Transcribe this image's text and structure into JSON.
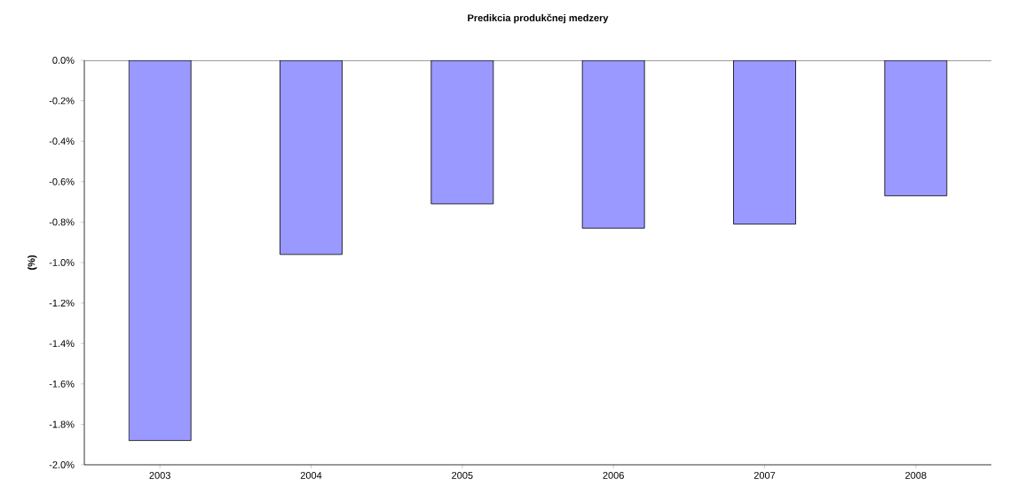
{
  "chart_data": {
    "type": "bar",
    "title": "Predikcia produkčnej medzery",
    "ylabel": "(%)",
    "categories": [
      "2003",
      "2004",
      "2005",
      "2006",
      "2007",
      "2008"
    ],
    "values": [
      -1.88,
      -0.96,
      -0.71,
      -0.83,
      -0.81,
      -0.67
    ],
    "color": "#9999ff",
    "ylim": [
      -2.0,
      0.0
    ],
    "yticks": [
      {
        "value": -2.0,
        "label": "-2.0%"
      },
      {
        "value": -1.8,
        "label": "-1.8%"
      },
      {
        "value": -1.6,
        "label": "-1.6%"
      },
      {
        "value": -1.4,
        "label": "-1.4%"
      },
      {
        "value": -1.2,
        "label": "-1.2%"
      },
      {
        "value": -1.0,
        "label": "-1.0%"
      },
      {
        "value": -0.8,
        "label": "-0.8%"
      },
      {
        "value": -0.6,
        "label": "-0.6%"
      },
      {
        "value": -0.4,
        "label": "-0.4%"
      },
      {
        "value": -0.2,
        "label": "-0.2%"
      },
      {
        "value": 0.0,
        "label": "0.0%"
      }
    ],
    "grid": false
  }
}
